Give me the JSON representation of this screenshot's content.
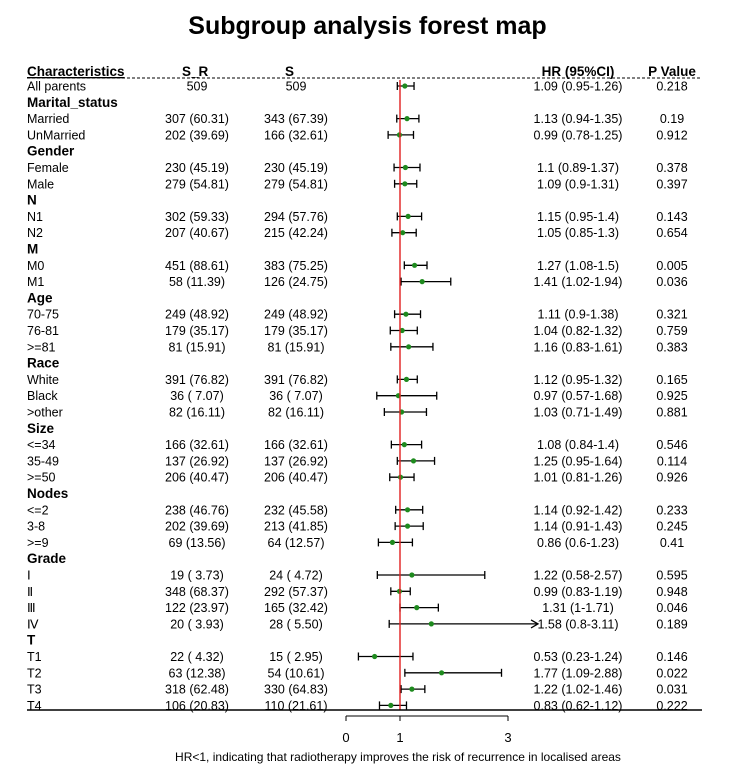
{
  "title": "Subgroup analysis forest map",
  "columns": [
    "Characteristics",
    "S_R",
    "S",
    "HR (95%CI)",
    "P Value"
  ],
  "footnote": "HR<1, indicating that radiotherapy improves the risk of recurrence in localised areas",
  "colors": {
    "reference_line": "#e01f1f",
    "point": "#1e8a1e",
    "line": "#000000"
  },
  "chart_data": {
    "type": "forest",
    "reference_value": 1,
    "x_ticks": [
      "0",
      "1",
      "3"
    ],
    "x_tick_values": [
      0,
      1,
      3
    ],
    "rows": [
      {
        "label": "All parents",
        "group": false,
        "sr": "509",
        "s": "509",
        "hr": 1.09,
        "lo": 0.95,
        "hi": 1.26,
        "ci": "1.09 (0.95-1.26)",
        "p": "0.218"
      },
      {
        "label": "Marital_status",
        "group": true
      },
      {
        "label": "Married",
        "group": false,
        "sr": "307 (60.31)",
        "s": "343 (67.39)",
        "hr": 1.13,
        "lo": 0.94,
        "hi": 1.35,
        "ci": "1.13 (0.94-1.35)",
        "p": "0.19"
      },
      {
        "label": "UnMarried",
        "group": false,
        "sr": "202 (39.69)",
        "s": "166 (32.61)",
        "hr": 0.99,
        "lo": 0.78,
        "hi": 1.25,
        "ci": "0.99 (0.78-1.25)",
        "p": "0.912"
      },
      {
        "label": "Gender",
        "group": true
      },
      {
        "label": "Female",
        "group": false,
        "sr": "230 (45.19)",
        "s": "230 (45.19)",
        "hr": 1.1,
        "lo": 0.89,
        "hi": 1.37,
        "ci": "1.1 (0.89-1.37)",
        "p": "0.378"
      },
      {
        "label": "Male",
        "group": false,
        "sr": "279 (54.81)",
        "s": "279 (54.81)",
        "hr": 1.09,
        "lo": 0.9,
        "hi": 1.31,
        "ci": "1.09 (0.9-1.31)",
        "p": "0.397"
      },
      {
        "label": "N",
        "group": true
      },
      {
        "label": "N1",
        "group": false,
        "sr": "302 (59.33)",
        "s": "294 (57.76)",
        "hr": 1.15,
        "lo": 0.95,
        "hi": 1.4,
        "ci": "1.15 (0.95-1.4)",
        "p": "0.143"
      },
      {
        "label": "N2",
        "group": false,
        "sr": "207 (40.67)",
        "s": "215 (42.24)",
        "hr": 1.05,
        "lo": 0.85,
        "hi": 1.3,
        "ci": "1.05 (0.85-1.3)",
        "p": "0.654"
      },
      {
        "label": "M",
        "group": true
      },
      {
        "label": "M0",
        "group": false,
        "sr": "451 (88.61)",
        "s": "383 (75.25)",
        "hr": 1.27,
        "lo": 1.08,
        "hi": 1.5,
        "ci": "1.27 (1.08-1.5)",
        "p": "0.005"
      },
      {
        "label": "M1",
        "group": false,
        "sr": "58 (11.39)",
        "s": "126 (24.75)",
        "hr": 1.41,
        "lo": 1.02,
        "hi": 1.94,
        "ci": "1.41 (1.02-1.94)",
        "p": "0.036"
      },
      {
        "label": "Age",
        "group": true
      },
      {
        "label": "70-75",
        "group": false,
        "sr": "249 (48.92)",
        "s": "249 (48.92)",
        "hr": 1.11,
        "lo": 0.9,
        "hi": 1.38,
        "ci": "1.11 (0.9-1.38)",
        "p": "0.321"
      },
      {
        "label": "76-81",
        "group": false,
        "sr": "179 (35.17)",
        "s": "179 (35.17)",
        "hr": 1.04,
        "lo": 0.82,
        "hi": 1.32,
        "ci": "1.04 (0.82-1.32)",
        "p": "0.759"
      },
      {
        "label": ">=81",
        "group": false,
        "sr": "81 (15.91)",
        "s": "81 (15.91)",
        "hr": 1.16,
        "lo": 0.83,
        "hi": 1.61,
        "ci": "1.16 (0.83-1.61)",
        "p": "0.383"
      },
      {
        "label": "Race",
        "group": true
      },
      {
        "label": "White",
        "group": false,
        "sr": "391 (76.82)",
        "s": "391 (76.82)",
        "hr": 1.12,
        "lo": 0.95,
        "hi": 1.32,
        "ci": "1.12 (0.95-1.32)",
        "p": "0.165"
      },
      {
        "label": "Black",
        "group": false,
        "sr": "36 ( 7.07)",
        "s": "36 ( 7.07)",
        "hr": 0.97,
        "lo": 0.57,
        "hi": 1.68,
        "ci": "0.97 (0.57-1.68)",
        "p": "0.925"
      },
      {
        "label": ">other",
        "group": false,
        "sr": "82 (16.11)",
        "s": "82 (16.11)",
        "hr": 1.03,
        "lo": 0.71,
        "hi": 1.49,
        "ci": "1.03 (0.71-1.49)",
        "p": "0.881"
      },
      {
        "label": "Size",
        "group": true
      },
      {
        "label": "<=34",
        "group": false,
        "sr": "166 (32.61)",
        "s": "166 (32.61)",
        "hr": 1.08,
        "lo": 0.84,
        "hi": 1.4,
        "ci": "1.08 (0.84-1.4)",
        "p": "0.546"
      },
      {
        "label": "35-49",
        "group": false,
        "sr": "137 (26.92)",
        "s": "137 (26.92)",
        "hr": 1.25,
        "lo": 0.95,
        "hi": 1.64,
        "ci": "1.25 (0.95-1.64)",
        "p": "0.114"
      },
      {
        "label": ">=50",
        "group": false,
        "sr": "206 (40.47)",
        "s": "206 (40.47)",
        "hr": 1.01,
        "lo": 0.81,
        "hi": 1.26,
        "ci": "1.01 (0.81-1.26)",
        "p": "0.926"
      },
      {
        "label": "Nodes",
        "group": true
      },
      {
        "label": "<=2",
        "group": false,
        "sr": "238 (46.76)",
        "s": "232 (45.58)",
        "hr": 1.14,
        "lo": 0.92,
        "hi": 1.42,
        "ci": "1.14 (0.92-1.42)",
        "p": "0.233"
      },
      {
        "label": "3-8",
        "group": false,
        "sr": "202 (39.69)",
        "s": "213 (41.85)",
        "hr": 1.14,
        "lo": 0.91,
        "hi": 1.43,
        "ci": "1.14 (0.91-1.43)",
        "p": "0.245"
      },
      {
        "label": ">=9",
        "group": false,
        "sr": "69 (13.56)",
        "s": "64 (12.57)",
        "hr": 0.86,
        "lo": 0.6,
        "hi": 1.23,
        "ci": "0.86 (0.6-1.23)",
        "p": "0.41"
      },
      {
        "label": "Grade",
        "group": true
      },
      {
        "label": "Ⅰ",
        "group": false,
        "sr": "19 ( 3.73)",
        "s": "24 ( 4.72)",
        "hr": 1.22,
        "lo": 0.58,
        "hi": 2.57,
        "ci": "1.22 (0.58-2.57)",
        "p": "0.595"
      },
      {
        "label": "Ⅱ",
        "group": false,
        "sr": "348 (68.37)",
        "s": "292 (57.37)",
        "hr": 0.99,
        "lo": 0.83,
        "hi": 1.19,
        "ci": "0.99 (0.83-1.19)",
        "p": "0.948"
      },
      {
        "label": "Ⅲ",
        "group": false,
        "sr": "122 (23.97)",
        "s": "165 (32.42)",
        "hr": 1.31,
        "lo": 1,
        "hi": 1.71,
        "ci": "1.31 (1-1.71)",
        "p": "0.046"
      },
      {
        "label": "Ⅳ",
        "group": false,
        "sr": "20 ( 3.93)",
        "s": "28 ( 5.50)",
        "hr": 1.58,
        "lo": 0.8,
        "hi": 3.11,
        "ci": "1.58 (0.8-3.11)",
        "p": "0.189",
        "arrow": true
      },
      {
        "label": "T",
        "group": true
      },
      {
        "label": "T1",
        "group": false,
        "sr": "22 ( 4.32)",
        "s": "15 ( 2.95)",
        "hr": 0.53,
        "lo": 0.23,
        "hi": 1.24,
        "ci": "0.53 (0.23-1.24)",
        "p": "0.146"
      },
      {
        "label": "T2",
        "group": false,
        "sr": "63 (12.38)",
        "s": "54 (10.61)",
        "hr": 1.77,
        "lo": 1.09,
        "hi": 2.88,
        "ci": "1.77 (1.09-2.88)",
        "p": "0.022"
      },
      {
        "label": "T3",
        "group": false,
        "sr": "318 (62.48)",
        "s": "330 (64.83)",
        "hr": 1.22,
        "lo": 1.02,
        "hi": 1.46,
        "ci": "1.22 (1.02-1.46)",
        "p": "0.031"
      },
      {
        "label": "T4",
        "group": false,
        "sr": "106 (20.83)",
        "s": "110 (21.61)",
        "hr": 0.83,
        "lo": 0.62,
        "hi": 1.12,
        "ci": "0.83 (0.62-1.12)",
        "p": "0.222"
      }
    ]
  }
}
